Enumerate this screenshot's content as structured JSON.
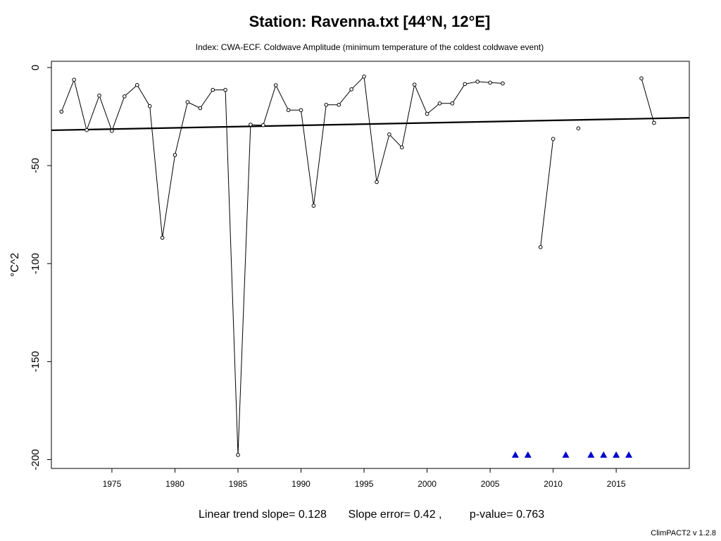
{
  "chart_data": {
    "type": "line",
    "title": "Station: Ravenna.txt [44°N, 12°E]",
    "subtitle": "Index: CWA-ECF. Coldwave Amplitude (minimum temperature of the coldest coldwave event)",
    "xlabel": "",
    "ylabel": "°C^2",
    "xlim": [
      1970.2,
      2020.8
    ],
    "ylim": [
      -204.5,
      3.2
    ],
    "x_ticks": [
      1975,
      1980,
      1985,
      1990,
      1995,
      2000,
      2005,
      2010,
      2015
    ],
    "y_ticks": [
      0,
      -50,
      -100,
      -150,
      -200
    ],
    "x": [
      1971,
      1972,
      1973,
      1974,
      1975,
      1976,
      1977,
      1978,
      1979,
      1980,
      1981,
      1982,
      1983,
      1984,
      1985,
      1986,
      1987,
      1988,
      1989,
      1990,
      1991,
      1992,
      1993,
      1994,
      1995,
      1996,
      1997,
      1998,
      1999,
      2000,
      2001,
      2002,
      2003,
      2004,
      2005,
      2006,
      2007,
      2008,
      2009,
      2010,
      2011,
      2012,
      2013,
      2014,
      2015,
      2016,
      2017,
      2018
    ],
    "values": [
      -22.5,
      -6.2,
      -31.9,
      -14.3,
      -32.3,
      -14.7,
      -8.9,
      -19.7,
      -86.8,
      -44.6,
      -17.6,
      -20.7,
      -11.4,
      -11.4,
      -197.6,
      -29.1,
      -29.4,
      -9.0,
      -21.7,
      -21.7,
      -70.5,
      -19.0,
      -19.0,
      -11.1,
      -4.6,
      -58.4,
      -34.1,
      -40.7,
      -8.7,
      -23.6,
      -18.3,
      -18.3,
      -8.4,
      -7.2,
      -7.7,
      -8.1,
      null,
      null,
      -91.6,
      -36.4,
      null,
      -31.0,
      null,
      null,
      null,
      null,
      -5.5,
      -28.2
    ],
    "missing_x": [
      2007,
      2008,
      2011,
      2013,
      2014,
      2015,
      2016
    ],
    "missing_marker_y": -197.6,
    "trend": {
      "x": [
        1970.2,
        2020.8
      ],
      "y": [
        -32.0,
        -25.6
      ]
    },
    "grid": false,
    "footer": {
      "trend_text": "Linear trend slope= 0.128",
      "error_text": "Slope error= 0.42 ,",
      "pvalue_text": "p-value= 0.763"
    },
    "version": "ClimPACT2 v 1.2.8",
    "colors": {
      "line": "#000000",
      "missing_marker": "#0000cc",
      "background": "#ffffff"
    }
  }
}
